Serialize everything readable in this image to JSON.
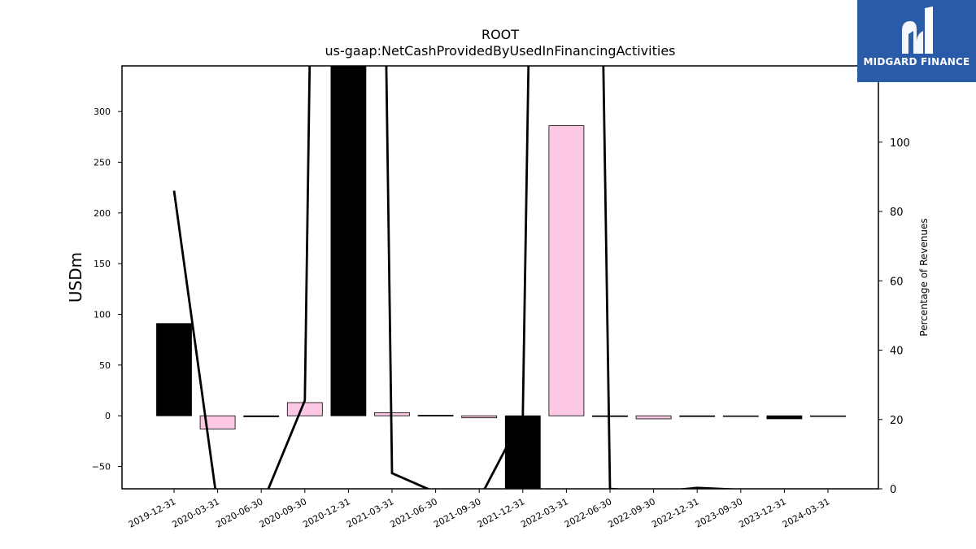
{
  "chart_data": {
    "type": "bar",
    "title": "ROOT",
    "subtitle": "us-gaap:NetCashProvidedByUsedInFinancingActivities",
    "ylabel": "USDm",
    "y2label": "Percentage of Revenues",
    "ylim": [
      -72,
      345
    ],
    "y2lim": [
      0,
      122
    ],
    "yticks": [
      -50,
      0,
      50,
      100,
      150,
      200,
      250,
      300
    ],
    "y2ticks": [
      0,
      20,
      40,
      60,
      80,
      100
    ],
    "categories": [
      "2019-12-31",
      "2020-03-31",
      "2020-06-30",
      "2020-09-30",
      "2020-12-31",
      "2021-03-31",
      "2021-06-30",
      "2021-09-30",
      "2021-12-31",
      "2022-03-31",
      "2022-06-30",
      "2022-09-30",
      "2022-12-31",
      "2023-09-30",
      "2023-12-31",
      "2024-03-31"
    ],
    "values": [
      91,
      -13,
      -1,
      13,
      345,
      3,
      0.5,
      -2,
      -72,
      286,
      -0.5,
      -3,
      -0.5,
      -0.5,
      -3,
      -0.5
    ],
    "bar_colors": [
      "#000000",
      "#fcc8e4",
      "#000000",
      "#fcc8e4",
      "#000000",
      "#fcc8e4",
      "#000000",
      "#fcc8e4",
      "#000000",
      "#fcc8e4",
      "#000000",
      "#fcc8e4",
      "#000000",
      "#fcc8e4",
      "#000000",
      "#fcc8e4"
    ],
    "line_series": {
      "axis": "right",
      "values": [
        86,
        -5,
        -5,
        25.5,
        900,
        4.5,
        -1,
        -3,
        21,
        800,
        0,
        -1,
        0.3,
        -0.3,
        -0.5,
        -0.3
      ]
    },
    "colors": {
      "negative_bar": "#000000",
      "positive_bar": "#fcc8e4",
      "line": "#000000"
    },
    "grid": false,
    "legend": "none"
  },
  "logo": {
    "text": "MIDGARD FINANCE",
    "background": "#2a5ba8"
  }
}
